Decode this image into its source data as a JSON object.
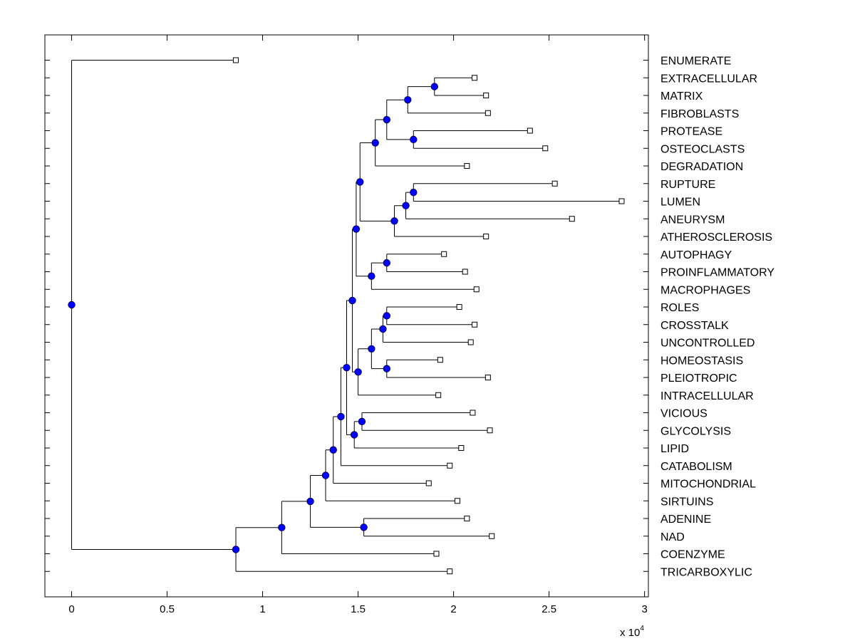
{
  "chart_data": {
    "type": "dendrogram",
    "title": "",
    "xlabel": "",
    "ylabel": "",
    "x_exponent_label": "x 10",
    "x_exponent_power": "4",
    "xlim": [
      -0.14,
      3.02
    ],
    "x_ticks": [
      0,
      0.5,
      1,
      1.5,
      2,
      2.5,
      3
    ],
    "x_tick_labels": [
      "0",
      "0.5",
      "1",
      "1.5",
      "2",
      "2.5",
      "3"
    ],
    "leaves": [
      {
        "label": "ENUMERATE",
        "x": 0.86
      },
      {
        "label": "EXTRACELLULAR",
        "x": 2.11
      },
      {
        "label": "MATRIX",
        "x": 2.17
      },
      {
        "label": "FIBROBLASTS",
        "x": 2.18
      },
      {
        "label": "PROTEASE",
        "x": 2.4
      },
      {
        "label": "OSTEOCLASTS",
        "x": 2.48
      },
      {
        "label": "DEGRADATION",
        "x": 2.07
      },
      {
        "label": "RUPTURE",
        "x": 2.53
      },
      {
        "label": "LUMEN",
        "x": 2.88
      },
      {
        "label": "ANEURYSM",
        "x": 2.62
      },
      {
        "label": "ATHEROSCLEROSIS",
        "x": 2.17
      },
      {
        "label": "AUTOPHAGY",
        "x": 1.95
      },
      {
        "label": "PROINFLAMMATORY",
        "x": 2.06
      },
      {
        "label": "MACROPHAGES",
        "x": 2.12
      },
      {
        "label": "ROLES",
        "x": 2.03
      },
      {
        "label": "CROSSTALK",
        "x": 2.11
      },
      {
        "label": "UNCONTROLLED",
        "x": 2.09
      },
      {
        "label": "HOMEOSTASIS",
        "x": 1.93
      },
      {
        "label": "PLEIOTROPIC",
        "x": 2.18
      },
      {
        "label": "INTRACELLULAR",
        "x": 1.92
      },
      {
        "label": "VICIOUS",
        "x": 2.1
      },
      {
        "label": "GLYCOLYSIS",
        "x": 2.19
      },
      {
        "label": "LIPID",
        "x": 2.04
      },
      {
        "label": "CATABOLISM",
        "x": 1.98
      },
      {
        "label": "MITOCHONDRIAL",
        "x": 1.87
      },
      {
        "label": "SIRTUINS",
        "x": 2.02
      },
      {
        "label": "ADENINE",
        "x": 2.07
      },
      {
        "label": "NAD",
        "x": 2.2
      },
      {
        "label": "COENZYME",
        "x": 1.91
      },
      {
        "label": "TRICARBOXYLIC",
        "x": 1.98
      }
    ],
    "nodes": [
      {
        "id": "n1",
        "x": 1.9,
        "children": [
          "L1",
          "L2"
        ]
      },
      {
        "id": "n2",
        "x": 1.76,
        "children": [
          "n1",
          "L3"
        ]
      },
      {
        "id": "n3",
        "x": 1.79,
        "children": [
          "L4",
          "L5"
        ]
      },
      {
        "id": "n4",
        "x": 1.65,
        "children": [
          "n2",
          "n3"
        ]
      },
      {
        "id": "n5",
        "x": 1.59,
        "children": [
          "n4",
          "L6"
        ]
      },
      {
        "id": "n6",
        "x": 1.79,
        "children": [
          "L7",
          "L8"
        ]
      },
      {
        "id": "n7",
        "x": 1.75,
        "children": [
          "n6",
          "L9"
        ]
      },
      {
        "id": "n8",
        "x": 1.69,
        "children": [
          "n7",
          "L10"
        ]
      },
      {
        "id": "n9",
        "x": 1.51,
        "children": [
          "n5",
          "n8"
        ]
      },
      {
        "id": "n10",
        "x": 1.65,
        "children": [
          "L11",
          "L12"
        ]
      },
      {
        "id": "n11",
        "x": 1.57,
        "children": [
          "n10",
          "L13"
        ]
      },
      {
        "id": "n12",
        "x": 1.49,
        "children": [
          "n9",
          "n11"
        ]
      },
      {
        "id": "n13",
        "x": 1.65,
        "children": [
          "L14",
          "L15"
        ]
      },
      {
        "id": "n14",
        "x": 1.63,
        "children": [
          "n13",
          "L16"
        ]
      },
      {
        "id": "n15",
        "x": 1.65,
        "children": [
          "L17",
          "L18"
        ]
      },
      {
        "id": "n16",
        "x": 1.57,
        "children": [
          "n14",
          "n15"
        ]
      },
      {
        "id": "n17",
        "x": 1.5,
        "children": [
          "n16",
          "L19"
        ]
      },
      {
        "id": "n18",
        "x": 1.47,
        "children": [
          "n12",
          "n17"
        ]
      },
      {
        "id": "n19",
        "x": 1.52,
        "children": [
          "L20",
          "L21"
        ]
      },
      {
        "id": "n20",
        "x": 1.48,
        "children": [
          "n19",
          "L22"
        ]
      },
      {
        "id": "n21",
        "x": 1.44,
        "children": [
          "n18",
          "n20"
        ]
      },
      {
        "id": "n22",
        "x": 1.41,
        "children": [
          "n21",
          "L23"
        ]
      },
      {
        "id": "n23",
        "x": 1.37,
        "children": [
          "n22",
          "L24"
        ]
      },
      {
        "id": "n24",
        "x": 1.33,
        "children": [
          "n23",
          "L25"
        ]
      },
      {
        "id": "n25",
        "x": 1.53,
        "children": [
          "L26",
          "L27"
        ]
      },
      {
        "id": "n26",
        "x": 1.25,
        "children": [
          "n24",
          "n25"
        ]
      },
      {
        "id": "n27",
        "x": 1.1,
        "children": [
          "n26",
          "L28"
        ]
      },
      {
        "id": "n28",
        "x": 0.86,
        "children": [
          "n27",
          "L29"
        ]
      },
      {
        "id": "n29",
        "x": 0.0,
        "children": [
          "L0",
          "n28"
        ]
      }
    ],
    "node_color": "#0000ff",
    "leaf_marker_color": "#ffffff",
    "line_color": "#000000"
  }
}
